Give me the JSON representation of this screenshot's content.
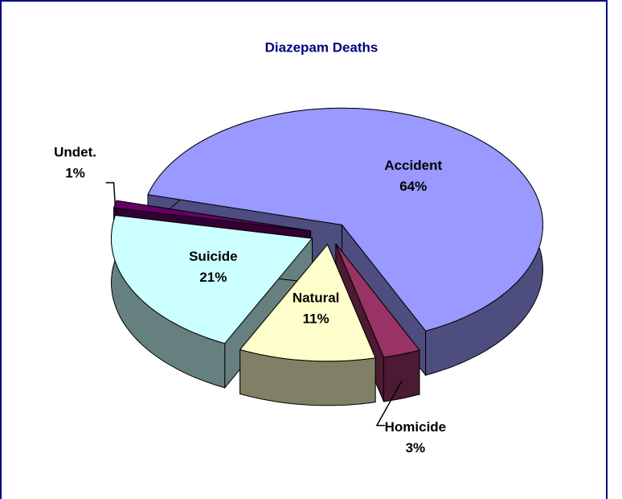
{
  "chart_data": {
    "type": "pie3d",
    "title": "Diazepam Deaths",
    "categories": [
      "Accident",
      "Homicide",
      "Natural",
      "Suicide",
      "Undet."
    ],
    "values": [
      64,
      3,
      11,
      21,
      1
    ],
    "value_labels": [
      "64%",
      "3%",
      "11%",
      "21%",
      "1%"
    ],
    "colors": [
      "#9999ff",
      "#993366",
      "#ffffcc",
      "#ccffff",
      "#660066"
    ]
  }
}
